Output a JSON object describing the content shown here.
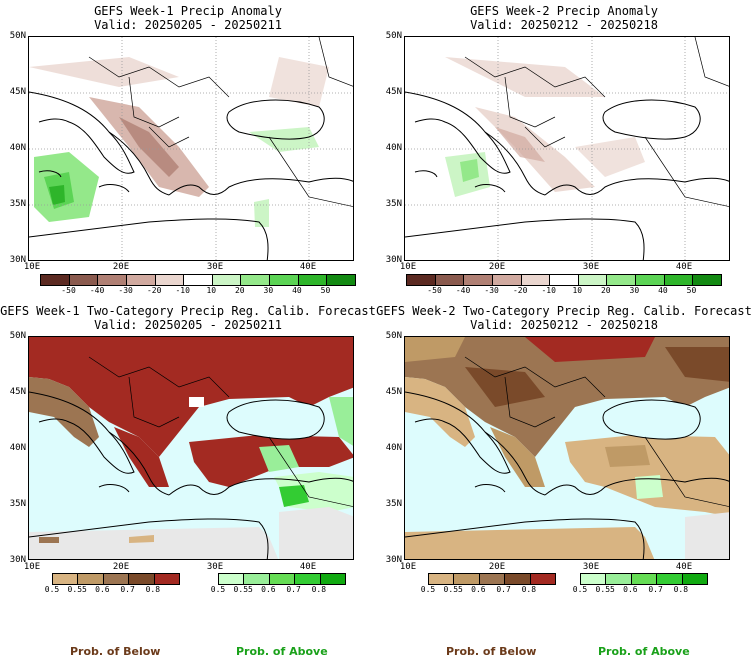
{
  "panels": [
    {
      "title": "GEFS Week-1 Precip Anomaly",
      "valid": "Valid: 20250205 - 20250211"
    },
    {
      "title": "GEFS Week-2 Precip Anomaly",
      "valid": "Valid: 20250212 - 20250218"
    },
    {
      "title": "GEFS Week-1 Two-Category Precip Reg. Calib. Forecast",
      "valid": "Valid: 20250205 - 20250211"
    },
    {
      "title": "GEFS Week-2 Two-Category Precip Reg. Calib. Forecast",
      "valid": "Valid: 20250212 - 20250218"
    }
  ],
  "axes": {
    "lat_labels": [
      "50N",
      "45N",
      "40N",
      "35N",
      "30N"
    ],
    "lon_labels": [
      "10E",
      "20E",
      "30E",
      "40E"
    ]
  },
  "anomaly_colorbar": {
    "ticks": [
      "-50",
      "-40",
      "-30",
      "-20",
      "-10",
      "10",
      "20",
      "30",
      "40",
      "50"
    ],
    "colors": [
      "#5c2a22",
      "#8a5a4e",
      "#b08074",
      "#d1aaa0",
      "#ead6cf",
      "#ffffff",
      "#ccf5c6",
      "#94e88a",
      "#5cd455",
      "#2eb52a",
      "#138a12"
    ]
  },
  "prob_below_colorbar": {
    "ticks": [
      "0.5",
      "0.55",
      "0.6",
      "0.7",
      "0.8"
    ],
    "colors": [
      "#d8b482",
      "#bf9a66",
      "#9c7552",
      "#7a4a2a",
      "#a32a22"
    ]
  },
  "prob_above_colorbar": {
    "ticks": [
      "0.5",
      "0.55",
      "0.6",
      "0.7",
      "0.8"
    ],
    "colors": [
      "#ccffcc",
      "#99ee99",
      "#66dd55",
      "#33cc33",
      "#11aa11"
    ]
  },
  "legend": {
    "below": "Prob. of Below",
    "above": "Prob. of Above",
    "below_color": "#6b3a1a",
    "above_color": "#1aa11a"
  },
  "colors": {
    "ocean_prob": "#ddfcfd",
    "land_white": "#ffffff",
    "no_data_gray": "#e8e8e8"
  }
}
